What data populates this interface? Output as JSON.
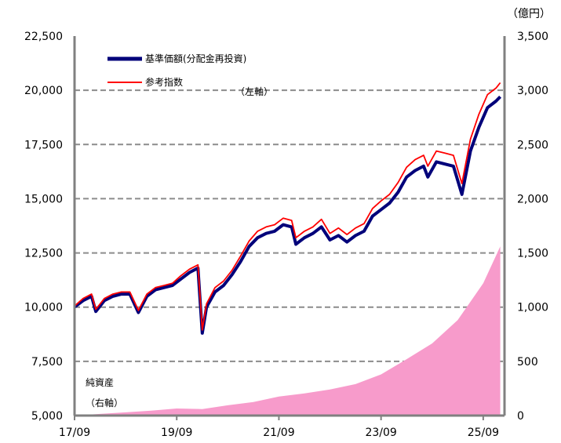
{
  "chart_data": {
    "type": "line",
    "x_ticks": [
      "17/09",
      "19/09",
      "21/09",
      "23/09",
      "25/09"
    ],
    "left_axis": {
      "ylim": [
        5000,
        22500
      ],
      "ticks": [
        "5,000",
        "7,500",
        "10,000",
        "12,500",
        "15,000",
        "17,500",
        "20,000",
        "22,500"
      ],
      "label": "（左軸）"
    },
    "right_axis": {
      "unit": "（億円）",
      "ylim": [
        0,
        3500
      ],
      "ticks": [
        "0",
        "500",
        "1,000",
        "1,500",
        "2,000",
        "2,500",
        "3,000",
        "3,500"
      ]
    },
    "grid": "horizontal dashed",
    "legend_position": "top-left",
    "series": [
      {
        "name": "基準価額(分配金再投資)",
        "axis": "left",
        "color": "#00007a",
        "x": [
          "17/09",
          "17/11",
          "18/01",
          "18/02",
          "18/04",
          "18/06",
          "18/08",
          "18/10",
          "18/12",
          "19/02",
          "19/04",
          "19/06",
          "19/08",
          "19/10",
          "19/12",
          "20/02",
          "20/03",
          "20/04",
          "20/06",
          "20/08",
          "20/10",
          "20/12",
          "21/02",
          "21/04",
          "21/06",
          "21/08",
          "21/10",
          "21/12",
          "22/01",
          "22/03",
          "22/05",
          "22/07",
          "22/09",
          "22/11",
          "23/01",
          "23/03",
          "23/05",
          "23/07",
          "23/09",
          "23/11",
          "24/01",
          "24/03",
          "24/05",
          "24/07",
          "24/08",
          "24/10",
          "24/12",
          "25/02",
          "25/04",
          "25/06",
          "25/08",
          "25/10",
          "25/12",
          "26/01"
        ],
        "values": [
          10000,
          10300,
          10500,
          9800,
          10300,
          10500,
          10600,
          10600,
          9750,
          10500,
          10800,
          10900,
          11000,
          11300,
          11600,
          11800,
          8800,
          10000,
          10700,
          11000,
          11500,
          12100,
          12800,
          13200,
          13400,
          13500,
          13800,
          13700,
          12900,
          13200,
          13400,
          13700,
          13100,
          13300,
          13000,
          13300,
          13500,
          14200,
          14500,
          14800,
          15300,
          16000,
          16300,
          16500,
          16000,
          16700,
          16600,
          16500,
          15200,
          17200,
          18300,
          19200,
          19500,
          19700
        ]
      },
      {
        "name": "参考指数",
        "axis": "left",
        "color": "#ff0000",
        "x": [
          "17/09",
          "17/11",
          "18/01",
          "18/02",
          "18/04",
          "18/06",
          "18/08",
          "18/10",
          "18/12",
          "19/02",
          "19/04",
          "19/06",
          "19/08",
          "19/10",
          "19/12",
          "20/02",
          "20/03",
          "20/04",
          "20/06",
          "20/08",
          "20/10",
          "20/12",
          "21/02",
          "21/04",
          "21/06",
          "21/08",
          "21/10",
          "21/12",
          "22/01",
          "22/03",
          "22/05",
          "22/07",
          "22/09",
          "22/11",
          "23/01",
          "23/03",
          "23/05",
          "23/07",
          "23/09",
          "23/11",
          "24/01",
          "24/03",
          "24/05",
          "24/07",
          "24/08",
          "24/10",
          "24/12",
          "25/02",
          "25/04",
          "25/06",
          "25/08",
          "25/10",
          "25/12",
          "26/01"
        ],
        "values": [
          10050,
          10400,
          10600,
          9900,
          10400,
          10600,
          10700,
          10700,
          9850,
          10600,
          10900,
          11000,
          11100,
          11450,
          11750,
          11950,
          8950,
          10150,
          10900,
          11200,
          11700,
          12350,
          13050,
          13500,
          13700,
          13800,
          14100,
          14000,
          13200,
          13500,
          13700,
          14050,
          13400,
          13650,
          13350,
          13650,
          13850,
          14550,
          14900,
          15200,
          15750,
          16450,
          16800,
          17000,
          16500,
          17200,
          17100,
          17000,
          15700,
          17750,
          18900,
          19800,
          20100,
          20350
        ]
      },
      {
        "name": "純資産",
        "label_lines": [
          "純資産",
          "（右軸）"
        ],
        "axis": "right",
        "type": "area",
        "color": "#f79bcb",
        "x": [
          "17/09",
          "18/03",
          "18/09",
          "19/03",
          "19/09",
          "20/03",
          "20/09",
          "21/03",
          "21/09",
          "22/03",
          "22/09",
          "23/03",
          "23/09",
          "24/03",
          "24/09",
          "25/03",
          "25/09",
          "26/01"
        ],
        "values": [
          0,
          15,
          30,
          45,
          65,
          60,
          95,
          125,
          175,
          205,
          240,
          290,
          380,
          520,
          665,
          880,
          1220,
          1560
        ]
      }
    ]
  }
}
